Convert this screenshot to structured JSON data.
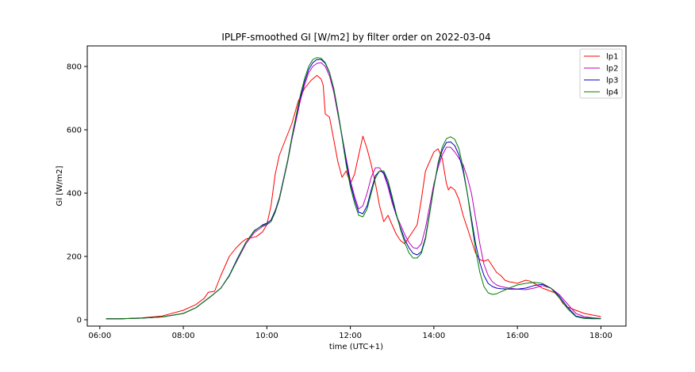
{
  "chart_data": {
    "type": "line",
    "title": "IPLPF-smoothed GI [W/m2] by filter order on 2022-03-04",
    "xlabel": "time (UTC+1)",
    "ylabel": "GI [W/m2]",
    "xlim": [
      5.7,
      18.6
    ],
    "ylim": [
      -20,
      865
    ],
    "xticks": [
      {
        "value": 6,
        "label": "06:00"
      },
      {
        "value": 8,
        "label": "08:00"
      },
      {
        "value": 10,
        "label": "10:00"
      },
      {
        "value": 12,
        "label": "12:00"
      },
      {
        "value": 14,
        "label": "14:00"
      },
      {
        "value": 16,
        "label": "16:00"
      },
      {
        "value": 18,
        "label": "18:00"
      }
    ],
    "yticks": [
      0,
      200,
      400,
      600,
      800
    ],
    "grid": false,
    "legend_position": "top-right",
    "series": [
      {
        "name": "lp1",
        "color": "#ff0000",
        "x": [
          6.15,
          6.5,
          7.0,
          7.5,
          8.0,
          8.3,
          8.5,
          8.6,
          8.75,
          8.9,
          9.0,
          9.1,
          9.25,
          9.4,
          9.5,
          9.6,
          9.75,
          9.9,
          10.0,
          10.1,
          10.2,
          10.3,
          10.45,
          10.6,
          10.75,
          10.9,
          11.05,
          11.2,
          11.3,
          11.35,
          11.4,
          11.5,
          11.6,
          11.7,
          11.8,
          11.9,
          12.0,
          12.1,
          12.2,
          12.3,
          12.4,
          12.5,
          12.6,
          12.7,
          12.8,
          12.9,
          13.0,
          13.1,
          13.2,
          13.3,
          13.4,
          13.5,
          13.6,
          13.7,
          13.8,
          13.9,
          14.0,
          14.1,
          14.2,
          14.3,
          14.35,
          14.4,
          14.5,
          14.6,
          14.7,
          14.8,
          14.9,
          15.0,
          15.1,
          15.2,
          15.3,
          15.4,
          15.5,
          15.6,
          15.7,
          15.8,
          15.9,
          16.0,
          16.1,
          16.2,
          16.3,
          16.4,
          16.5,
          16.6,
          16.7,
          16.8,
          16.9,
          17.0,
          17.1,
          17.2,
          17.3,
          17.4,
          17.5,
          17.6,
          17.8,
          18.0
        ],
        "y": [
          3,
          3,
          6,
          12,
          30,
          48,
          68,
          87,
          90,
          140,
          170,
          200,
          225,
          245,
          255,
          258,
          263,
          278,
          300,
          360,
          460,
          520,
          570,
          620,
          690,
          730,
          755,
          772,
          760,
          740,
          650,
          640,
          570,
          500,
          450,
          470,
          430,
          460,
          520,
          580,
          540,
          490,
          430,
          360,
          310,
          330,
          300,
          270,
          250,
          240,
          260,
          280,
          300,
          380,
          470,
          500,
          530,
          540,
          510,
          430,
          410,
          420,
          410,
          380,
          330,
          290,
          250,
          210,
          190,
          185,
          190,
          170,
          150,
          140,
          125,
          120,
          118,
          115,
          120,
          125,
          122,
          115,
          108,
          100,
          95,
          90,
          85,
          70,
          50,
          40,
          35,
          30,
          25,
          20,
          15,
          10
        ]
      },
      {
        "name": "lp2",
        "color": "#bf00bf",
        "x": [
          6.15,
          6.5,
          7.0,
          7.5,
          8.0,
          8.3,
          8.5,
          8.7,
          8.9,
          9.1,
          9.3,
          9.5,
          9.7,
          9.9,
          10.0,
          10.1,
          10.2,
          10.3,
          10.4,
          10.5,
          10.6,
          10.7,
          10.8,
          10.9,
          11.0,
          11.1,
          11.2,
          11.3,
          11.4,
          11.5,
          11.6,
          11.7,
          11.8,
          11.9,
          12.0,
          12.1,
          12.2,
          12.3,
          12.4,
          12.5,
          12.6,
          12.7,
          12.8,
          12.9,
          13.0,
          13.1,
          13.2,
          13.3,
          13.4,
          13.5,
          13.6,
          13.7,
          13.8,
          13.9,
          14.0,
          14.1,
          14.2,
          14.3,
          14.4,
          14.5,
          14.6,
          14.7,
          14.8,
          14.9,
          15.0,
          15.1,
          15.2,
          15.3,
          15.4,
          15.5,
          15.6,
          15.8,
          16.0,
          16.2,
          16.4,
          16.6,
          16.8,
          17.0,
          17.2,
          17.4,
          17.6,
          17.8,
          18.0
        ],
        "y": [
          3,
          3,
          5,
          9,
          20,
          38,
          58,
          78,
          100,
          140,
          190,
          240,
          275,
          295,
          300,
          310,
          340,
          380,
          440,
          500,
          570,
          630,
          690,
          740,
          780,
          800,
          810,
          812,
          800,
          770,
          720,
          650,
          580,
          510,
          440,
          390,
          350,
          360,
          400,
          450,
          480,
          480,
          460,
          420,
          370,
          330,
          300,
          270,
          245,
          228,
          225,
          240,
          290,
          360,
          430,
          480,
          520,
          545,
          545,
          530,
          510,
          490,
          450,
          400,
          320,
          240,
          175,
          140,
          120,
          110,
          105,
          100,
          97,
          95,
          100,
          108,
          100,
          80,
          50,
          20,
          10,
          6,
          4
        ]
      },
      {
        "name": "lp3",
        "color": "#0000bf",
        "x": [
          6.15,
          6.5,
          7.0,
          7.5,
          8.0,
          8.3,
          8.5,
          8.7,
          8.9,
          9.1,
          9.3,
          9.5,
          9.7,
          9.9,
          10.0,
          10.1,
          10.2,
          10.3,
          10.4,
          10.5,
          10.6,
          10.7,
          10.8,
          10.9,
          11.0,
          11.1,
          11.2,
          11.3,
          11.4,
          11.5,
          11.6,
          11.7,
          11.8,
          11.9,
          12.0,
          12.1,
          12.2,
          12.3,
          12.4,
          12.5,
          12.6,
          12.7,
          12.8,
          12.9,
          13.0,
          13.1,
          13.2,
          13.3,
          13.4,
          13.5,
          13.6,
          13.7,
          13.8,
          13.9,
          14.0,
          14.1,
          14.2,
          14.3,
          14.4,
          14.5,
          14.6,
          14.7,
          14.8,
          14.9,
          15.0,
          15.1,
          15.2,
          15.3,
          15.4,
          15.5,
          15.6,
          15.8,
          16.0,
          16.2,
          16.4,
          16.6,
          16.8,
          17.0,
          17.2,
          17.4,
          17.6,
          17.8,
          18.0
        ],
        "y": [
          3,
          3,
          5,
          9,
          20,
          38,
          58,
          78,
          100,
          140,
          195,
          245,
          280,
          300,
          305,
          315,
          345,
          385,
          445,
          505,
          575,
          640,
          700,
          750,
          790,
          812,
          822,
          822,
          810,
          780,
          730,
          660,
          580,
          500,
          430,
          380,
          340,
          335,
          360,
          410,
          455,
          470,
          465,
          430,
          380,
          330,
          290,
          255,
          228,
          210,
          205,
          215,
          260,
          340,
          420,
          490,
          535,
          560,
          562,
          550,
          520,
          470,
          400,
          320,
          240,
          180,
          140,
          115,
          105,
          100,
          98,
          97,
          97,
          100,
          108,
          112,
          100,
          75,
          40,
          12,
          6,
          5,
          4
        ]
      },
      {
        "name": "lp4",
        "color": "#007f00",
        "x": [
          6.15,
          6.5,
          7.0,
          7.5,
          8.0,
          8.3,
          8.5,
          8.7,
          8.9,
          9.1,
          9.3,
          9.5,
          9.7,
          9.9,
          10.0,
          10.1,
          10.2,
          10.3,
          10.4,
          10.5,
          10.6,
          10.7,
          10.8,
          10.9,
          11.0,
          11.1,
          11.2,
          11.3,
          11.4,
          11.5,
          11.6,
          11.7,
          11.8,
          11.9,
          12.0,
          12.1,
          12.2,
          12.3,
          12.4,
          12.5,
          12.6,
          12.7,
          12.8,
          12.9,
          13.0,
          13.1,
          13.2,
          13.3,
          13.4,
          13.5,
          13.6,
          13.7,
          13.8,
          13.9,
          14.0,
          14.1,
          14.2,
          14.3,
          14.4,
          14.5,
          14.6,
          14.7,
          14.8,
          14.9,
          15.0,
          15.1,
          15.2,
          15.3,
          15.4,
          15.5,
          15.6,
          15.8,
          16.0,
          16.2,
          16.4,
          16.6,
          16.8,
          17.0,
          17.2,
          17.4,
          17.6,
          17.8,
          18.0
        ],
        "y": [
          3,
          3,
          5,
          9,
          20,
          38,
          58,
          78,
          100,
          138,
          192,
          245,
          282,
          298,
          302,
          310,
          340,
          382,
          442,
          505,
          578,
          645,
          708,
          760,
          800,
          822,
          828,
          826,
          812,
          782,
          732,
          660,
          575,
          490,
          420,
          368,
          330,
          325,
          350,
          400,
          448,
          470,
          470,
          440,
          390,
          335,
          285,
          245,
          212,
          195,
          195,
          210,
          255,
          335,
          420,
          495,
          545,
          572,
          578,
          570,
          540,
          480,
          400,
          310,
          220,
          150,
          105,
          85,
          80,
          82,
          88,
          100,
          110,
          115,
          118,
          115,
          100,
          70,
          35,
          10,
          4,
          3,
          3
        ]
      }
    ]
  }
}
